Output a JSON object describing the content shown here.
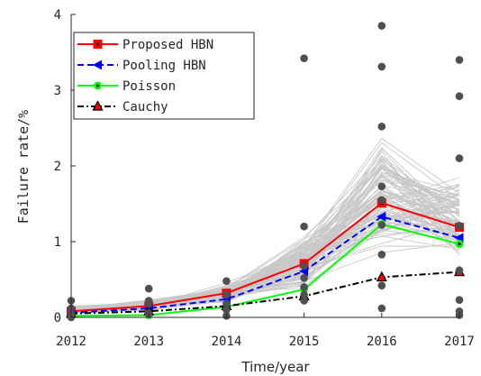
{
  "chart_data": {
    "type": "line",
    "title": "",
    "xlabel": "Time/year",
    "ylabel": "Failure rate/%",
    "x": [
      2012,
      2013,
      2014,
      2015,
      2016,
      2017
    ],
    "xlim": [
      2012,
      2017
    ],
    "ylim": [
      0,
      4
    ],
    "xticks": [
      2012,
      2013,
      2014,
      2015,
      2016,
      2017
    ],
    "yticks": [
      0,
      1,
      2,
      3,
      4
    ],
    "xtick_labels": [
      "2012",
      "2013",
      "2014",
      "2015",
      "2016",
      "2017"
    ],
    "ytick_labels": [
      "0",
      "1",
      "2",
      "3",
      "4"
    ],
    "grid": false,
    "legend_position": "top-left",
    "series": [
      {
        "name": "Proposed HBN",
        "values": [
          0.08,
          0.15,
          0.32,
          0.71,
          1.51,
          1.19
        ],
        "color": "#ff0000",
        "dash": "solid",
        "marker": "square"
      },
      {
        "name": "Pooling HBN",
        "values": [
          0.06,
          0.12,
          0.24,
          0.61,
          1.33,
          1.05
        ],
        "color": "#0000ff",
        "dash": "dashed",
        "marker": "triangle-left"
      },
      {
        "name": "Poisson",
        "values": [
          0.02,
          0.03,
          0.14,
          0.37,
          1.23,
          0.97
        ],
        "color": "#00ff00",
        "dash": "solid",
        "marker": "circle"
      },
      {
        "name": "Cauchy",
        "values": [
          0.05,
          0.08,
          0.15,
          0.28,
          0.53,
          0.6
        ],
        "color": "#000000",
        "dash": "dashdot",
        "marker": "triangle-up"
      }
    ],
    "observed_points": [
      {
        "x": 2012,
        "y": 0.22
      },
      {
        "x": 2012,
        "y": 0.12
      },
      {
        "x": 2012,
        "y": 0.05
      },
      {
        "x": 2012,
        "y": 0.0
      },
      {
        "x": 2013,
        "y": 0.38
      },
      {
        "x": 2013,
        "y": 0.22
      },
      {
        "x": 2013,
        "y": 0.18
      },
      {
        "x": 2013,
        "y": 0.05
      },
      {
        "x": 2014,
        "y": 0.48
      },
      {
        "x": 2014,
        "y": 0.3
      },
      {
        "x": 2014,
        "y": 0.18
      },
      {
        "x": 2014,
        "y": 0.1
      },
      {
        "x": 2014,
        "y": 0.02
      },
      {
        "x": 2015,
        "y": 3.42
      },
      {
        "x": 2015,
        "y": 1.2
      },
      {
        "x": 2015,
        "y": 0.68
      },
      {
        "x": 2015,
        "y": 0.52
      },
      {
        "x": 2015,
        "y": 0.4
      },
      {
        "x": 2015,
        "y": 0.3
      },
      {
        "x": 2015,
        "y": 0.22
      },
      {
        "x": 2016,
        "y": 3.85
      },
      {
        "x": 2016,
        "y": 3.31
      },
      {
        "x": 2016,
        "y": 2.52
      },
      {
        "x": 2016,
        "y": 1.73
      },
      {
        "x": 2016,
        "y": 1.55
      },
      {
        "x": 2016,
        "y": 1.22
      },
      {
        "x": 2016,
        "y": 0.83
      },
      {
        "x": 2016,
        "y": 0.42
      },
      {
        "x": 2016,
        "y": 0.12
      },
      {
        "x": 2017,
        "y": 3.4
      },
      {
        "x": 2017,
        "y": 2.92
      },
      {
        "x": 2017,
        "y": 2.1
      },
      {
        "x": 2017,
        "y": 1.21
      },
      {
        "x": 2017,
        "y": 0.62
      },
      {
        "x": 2017,
        "y": 0.23
      },
      {
        "x": 2017,
        "y": 0.08
      },
      {
        "x": 2017,
        "y": 0.03
      }
    ],
    "sample_traces": {
      "count": 90,
      "color": "#c8c8c8",
      "mean": [
        0.1,
        0.16,
        0.32,
        0.72,
        1.6,
        1.3
      ],
      "spread": [
        0.04,
        0.06,
        0.1,
        0.3,
        0.6,
        0.45
      ]
    }
  }
}
